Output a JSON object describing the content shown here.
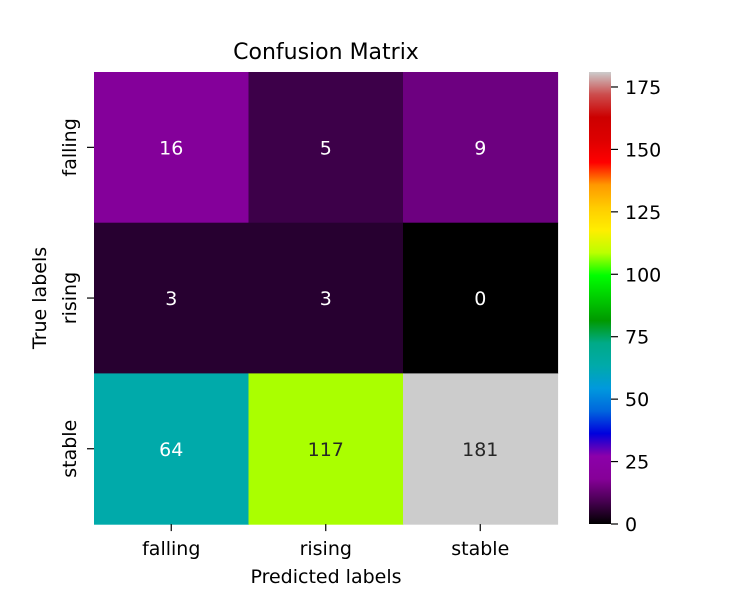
{
  "chart_data": {
    "type": "heatmap",
    "title": "Confusion Matrix",
    "xlabel": "Predicted labels",
    "ylabel": "True labels",
    "x_categories": [
      "falling",
      "rising",
      "stable"
    ],
    "y_categories": [
      "falling",
      "rising",
      "stable"
    ],
    "values": [
      [
        16,
        5,
        9
      ],
      [
        3,
        3,
        0
      ],
      [
        64,
        117,
        181
      ]
    ],
    "colormap": "nipy_spectral",
    "colorbar": {
      "range": [
        0,
        181
      ],
      "ticks": [
        0,
        25,
        50,
        75,
        100,
        125,
        150,
        175
      ]
    },
    "cell_colors": [
      [
        "#84009a",
        "#3d0049",
        "#6d0080"
      ],
      [
        "#270030",
        "#270030",
        "#000000"
      ],
      [
        "#00aaaa",
        "#aaff00",
        "#cccccc"
      ]
    ],
    "annotation_colors": [
      [
        "#ffffff",
        "#ffffff",
        "#ffffff"
      ],
      [
        "#ffffff",
        "#ffffff",
        "#ffffff"
      ],
      [
        "#ffffff",
        "#262626",
        "#262626"
      ]
    ]
  }
}
